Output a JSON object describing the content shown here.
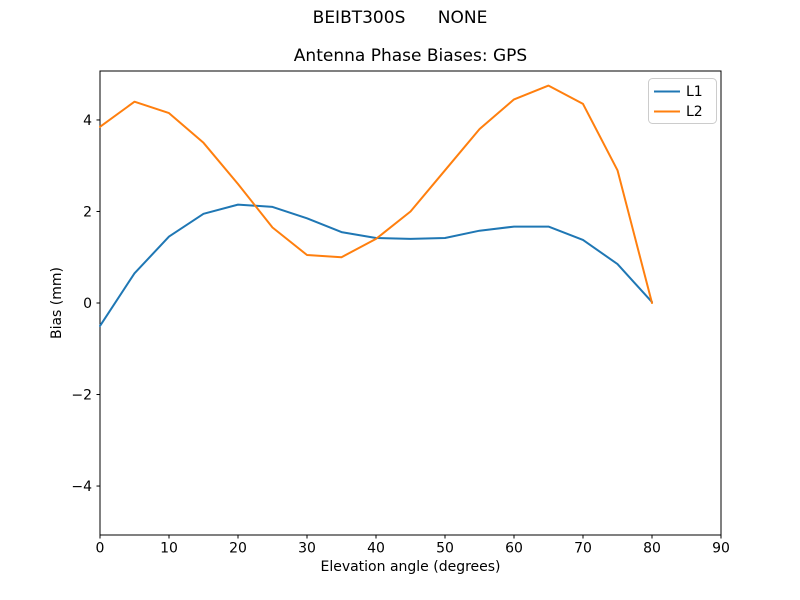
{
  "chart_data": {
    "type": "line",
    "title": "BEIBT300S      NONE",
    "subtitle": "Antenna Phase Biases: GPS",
    "xlabel": "Elevation angle (degrees)",
    "ylabel": "Bias (mm)",
    "x": [
      0,
      5,
      10,
      15,
      20,
      25,
      30,
      35,
      40,
      45,
      50,
      55,
      60,
      65,
      70,
      75,
      80
    ],
    "series": [
      {
        "name": "L1",
        "color": "#1f77b4",
        "values": [
          -0.5,
          0.65,
          1.45,
          1.95,
          2.15,
          2.1,
          1.85,
          1.55,
          1.42,
          1.4,
          1.42,
          1.58,
          1.67,
          1.67,
          1.38,
          0.85,
          0.02
        ]
      },
      {
        "name": "L2",
        "color": "#ff7f0e",
        "values": [
          3.85,
          4.4,
          4.15,
          3.5,
          2.6,
          1.65,
          1.05,
          1.0,
          1.4,
          2.0,
          2.9,
          3.8,
          4.45,
          4.75,
          4.35,
          2.9,
          0.0
        ]
      }
    ],
    "xlim": [
      0,
      90
    ],
    "ylim": [
      -5.07,
      5.07
    ],
    "xticks": [
      {
        "v": 0,
        "label": "0"
      },
      {
        "v": 10,
        "label": "10"
      },
      {
        "v": 20,
        "label": "20"
      },
      {
        "v": 30,
        "label": "30"
      },
      {
        "v": 40,
        "label": "40"
      },
      {
        "v": 50,
        "label": "50"
      },
      {
        "v": 60,
        "label": "60"
      },
      {
        "v": 70,
        "label": "70"
      },
      {
        "v": 80,
        "label": "80"
      },
      {
        "v": 90,
        "label": "90"
      }
    ],
    "yticks": [
      {
        "v": -4,
        "label": "−4"
      },
      {
        "v": -2,
        "label": "−2"
      },
      {
        "v": 0,
        "label": "0"
      },
      {
        "v": 2,
        "label": "2"
      },
      {
        "v": 4,
        "label": "4"
      }
    ],
    "grid": false,
    "legend": {
      "position": "upper right",
      "entries": [
        "L1",
        "L2"
      ]
    },
    "colors": {
      "spine": "#000000",
      "legend_border": "#cccccc",
      "background": "#ffffff"
    }
  }
}
